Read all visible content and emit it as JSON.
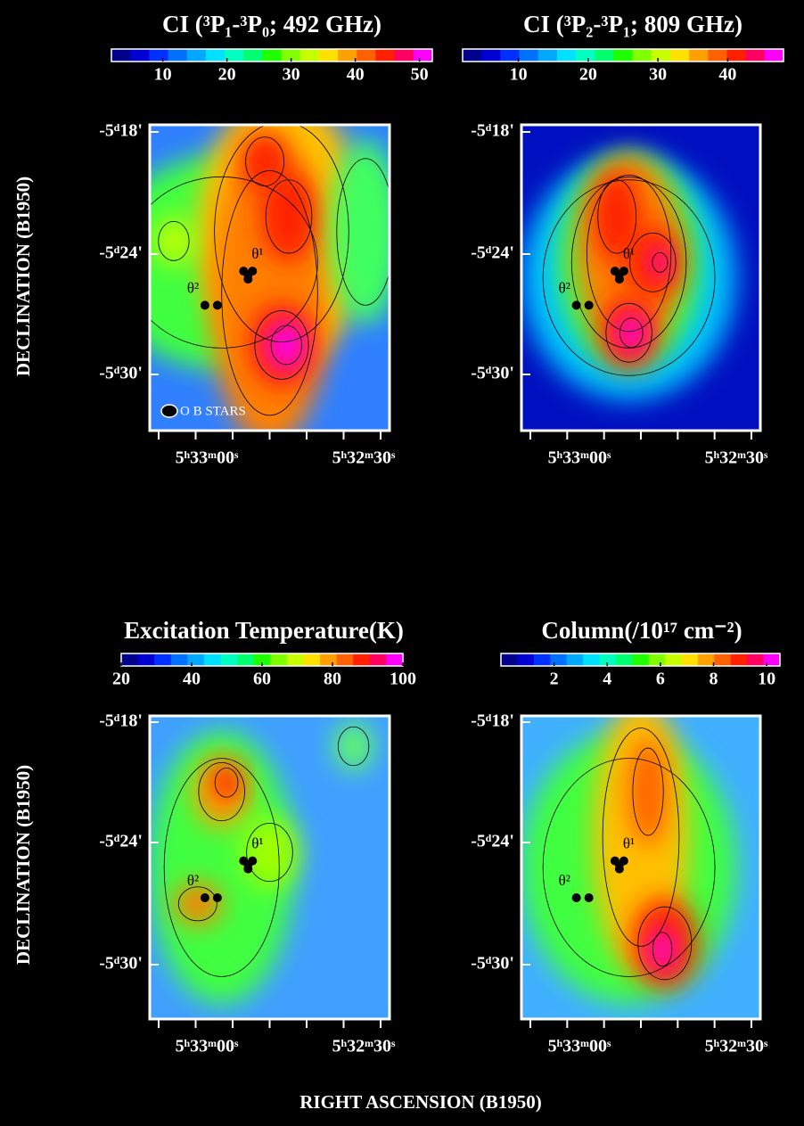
{
  "chart_data": [
    {
      "type": "contour_map",
      "title": "CI (³P₁-³P₀; 492 GHz)",
      "colorbar_lim": [
        2,
        52
      ],
      "colorbar_ticks": [
        10,
        20,
        30,
        40,
        50
      ],
      "y_labels": [
        "-5ᵈ18'",
        "-5ᵈ24'",
        "-5ᵈ30'"
      ],
      "x_labels": [
        "5ʰ33ᵐ00ˢ",
        "5ʰ32ᵐ30ˢ"
      ],
      "star_labels": [
        "θ¹",
        "θ²"
      ],
      "legend": "O B STARS"
    },
    {
      "type": "contour_map",
      "title": "CI (³P₂-³P₁; 809 GHz)",
      "colorbar_lim": [
        2,
        48
      ],
      "colorbar_ticks": [
        10,
        20,
        30,
        40
      ],
      "y_labels": [
        "-5ᵈ18'",
        "-5ᵈ24'",
        "-5ᵈ30'"
      ],
      "x_labels": [
        "5ʰ33ᵐ00ˢ",
        "5ʰ32ᵐ30ˢ"
      ],
      "star_labels": [
        "θ¹",
        "θ²"
      ]
    },
    {
      "type": "contour_map",
      "title": "Excitation Temperature(K)",
      "colorbar_lim": [
        20,
        100
      ],
      "colorbar_ticks": [
        20,
        40,
        60,
        80,
        100
      ],
      "y_labels": [
        "-5ᵈ18'",
        "-5ᵈ24'",
        "-5ᵈ30'"
      ],
      "x_labels": [
        "5ʰ33ᵐ00ˢ",
        "5ʰ32ᵐ30ˢ"
      ],
      "star_labels": [
        "θ¹",
        "θ²"
      ]
    },
    {
      "type": "contour_map",
      "title": "Column(/10¹⁷ cm⁻²)",
      "colorbar_lim": [
        0,
        10.5
      ],
      "colorbar_ticks": [
        2,
        4,
        6,
        8,
        10
      ],
      "y_labels": [
        "-5ᵈ18'",
        "-5ᵈ24'",
        "-5ᵈ30'"
      ],
      "x_labels": [
        "5ʰ33ᵐ00ˢ",
        "5ʰ32ᵐ30ˢ"
      ],
      "star_labels": [
        "θ¹",
        "θ²"
      ]
    }
  ],
  "y_axis_label": "DECLINATION (B1950)",
  "x_axis_label": "RIGHT ASCENSION (B1950)"
}
